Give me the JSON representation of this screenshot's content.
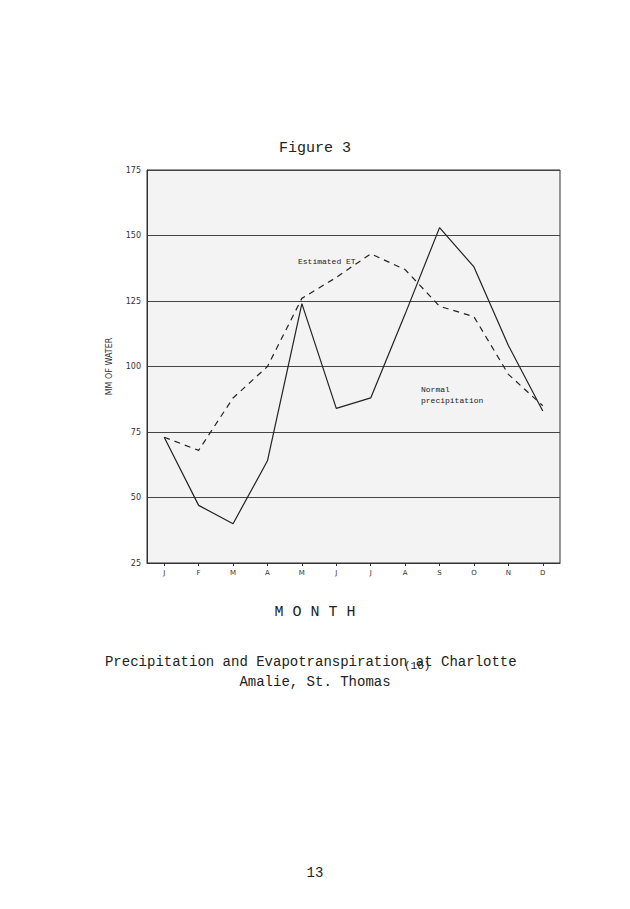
{
  "chart_data": {
    "type": "line",
    "title": "Figure 3",
    "x_label": "M O N T H",
    "y_label": "MM OF WATER",
    "caption": "Precipitation and Evapotranspiration at Charlotte Amalie, St. Thomas",
    "reference": "(16)",
    "page_number": "13",
    "categories": [
      "J",
      "F",
      "M",
      "A",
      "M",
      "J",
      "J",
      "A",
      "S",
      "O",
      "N",
      "D"
    ],
    "series": [
      {
        "name": "Estimated ET",
        "color": "#222222",
        "line_style": "dashed",
        "values": [
          73,
          68,
          88,
          100,
          126,
          134,
          143,
          137,
          123,
          119,
          97,
          85
        ]
      },
      {
        "name": "Normal precipitation",
        "color": "#222222",
        "line_style": "solid",
        "values": [
          73,
          47,
          40,
          64,
          124,
          84,
          88,
          120,
          153,
          138,
          108,
          83
        ]
      }
    ],
    "ylim": [
      25,
      175
    ],
    "yticks": [
      25,
      50,
      75,
      100,
      125,
      150,
      175
    ],
    "grid": true
  }
}
